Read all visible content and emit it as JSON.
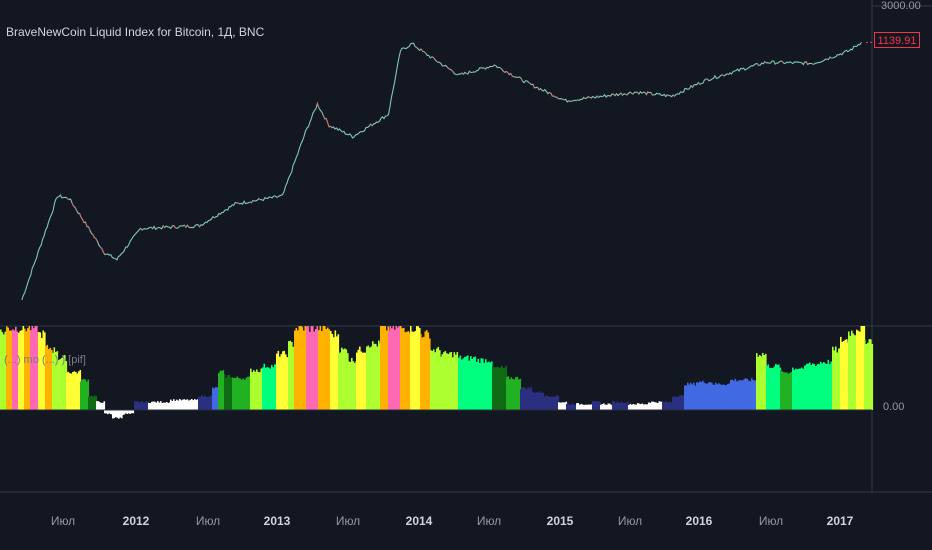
{
  "chart": {
    "title": "BraveNewCoin Liquid Index for Bitcoin, 1Д, BNC",
    "indicator_title": "(...) mo (...) ) [pif]",
    "price_axis_top": "3000.00",
    "last_price": "1139.91",
    "indicator_zero": "0.00",
    "x_labels": [
      "Июл",
      "2012",
      "Июл",
      "2013",
      "Июл",
      "2014",
      "Июл",
      "2015",
      "Июл",
      "2016",
      "Июл",
      "2017"
    ],
    "colors": {
      "background": "#131722",
      "price_line": "#7ec8b6",
      "price_down": "#ef5350",
      "last_price_badge": "#f23645",
      "white": "#ffffff",
      "navy": "#2a2f7f",
      "blue": "#4169e1",
      "dark_green": "#0e6b14",
      "green": "#22b122",
      "spring_green": "#00ff7f",
      "green_yellow": "#adff2f",
      "yellow": "#ffff33",
      "gold": "#ffb300",
      "pink": "#ff69b4"
    }
  },
  "chart_data": [
    {
      "type": "line",
      "title": "BraveNewCoin Liquid Index for Bitcoin, 1Д, BNC",
      "scale": "log",
      "x": [
        "2011-03",
        "2011-06",
        "2011-07",
        "2011-10",
        "2011-11",
        "2012-01",
        "2012-06",
        "2012-09",
        "2013-01",
        "2013-03",
        "2013-04",
        "2013-05",
        "2013-07",
        "2013-10",
        "2013-11",
        "2013-12",
        "2014-01",
        "2014-04",
        "2014-07",
        "2014-10",
        "2015-01",
        "2015-07",
        "2015-10",
        "2016-01",
        "2016-06",
        "2016-10",
        "2017-01",
        "2017-02"
      ],
      "y": [
        0.8,
        15,
        14,
        3,
        2.5,
        6,
        6.5,
        12,
        15,
        90,
        200,
        110,
        80,
        150,
        900,
        1100,
        850,
        450,
        600,
        350,
        220,
        280,
        250,
        400,
        650,
        630,
        900,
        1139.91
      ],
      "last_value": 1139.91,
      "ylim_top": 3000
    },
    {
      "type": "bar",
      "title": "(...) mo (...) ) [pif]",
      "zero_line": 0,
      "color_sequence": [
        "green_yellow",
        "gold",
        "pink",
        "yellow",
        "green",
        "white",
        "navy",
        "white",
        "blue",
        "green",
        "green_yellow",
        "gold",
        "pink",
        "green_yellow",
        "spring_green",
        "dark_green",
        "navy",
        "white",
        "navy",
        "blue",
        "spring_green",
        "green",
        "green_yellow"
      ]
    }
  ]
}
